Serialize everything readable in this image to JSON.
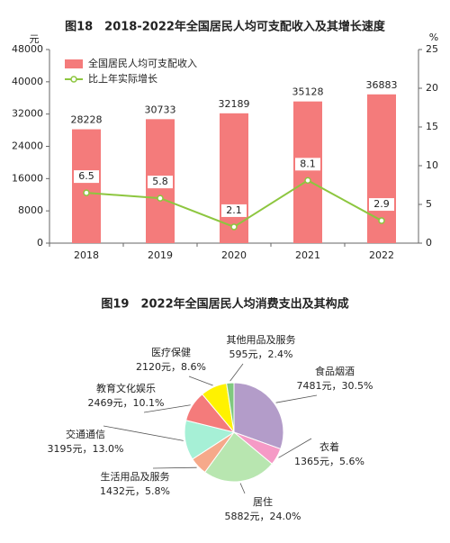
{
  "chart_data": [
    {
      "type": "combo",
      "title": "图18　2018-2022年全国居民人均可支配收入及其增长速度",
      "ylabel": "元",
      "y2label": "%",
      "categories": [
        "2018",
        "2019",
        "2020",
        "2021",
        "2022"
      ],
      "series": [
        {
          "name": "全国居民人均可支配收入",
          "type": "bar",
          "color": "#f47b7b",
          "values": [
            28228,
            30733,
            32189,
            35128,
            36883
          ]
        },
        {
          "name": "比上年实际增长",
          "type": "line",
          "axis": "y2",
          "color": "#8dc63f",
          "values": [
            6.5,
            5.8,
            2.1,
            8.1,
            2.9
          ]
        }
      ],
      "ylim": [
        0,
        48000
      ],
      "yticks": [
        0,
        8000,
        16000,
        24000,
        32000,
        40000,
        48000
      ],
      "y2lim": [
        0,
        25
      ],
      "y2ticks": [
        0,
        5,
        10,
        15,
        20,
        25
      ],
      "legend": "top-left",
      "grid": false
    },
    {
      "type": "pie",
      "title": "图19　2022年全国居民人均消费支出及其构成",
      "categories": [
        "食品烟酒",
        "衣着",
        "居住",
        "生活用品及服务",
        "交通通信",
        "教育文化娱乐",
        "医疗保健",
        "其他用品及服务"
      ],
      "values": [
        7481,
        1365,
        5882,
        1432,
        3195,
        2469,
        2120,
        595
      ],
      "value_labels": [
        "7481元，30.5%",
        "1365元，5.6%",
        "5882元，24.0%",
        "1432元，5.8%",
        "3195元，13.0%",
        "2469元，10.1%",
        "2120元，8.6%",
        "595元，2.4%"
      ],
      "colors": [
        "#b39cc9",
        "#f59ac6",
        "#b8e6b0",
        "#f6a98a",
        "#a6f0d6",
        "#f47b7b",
        "#fff200",
        "#7fc97f"
      ]
    }
  ]
}
